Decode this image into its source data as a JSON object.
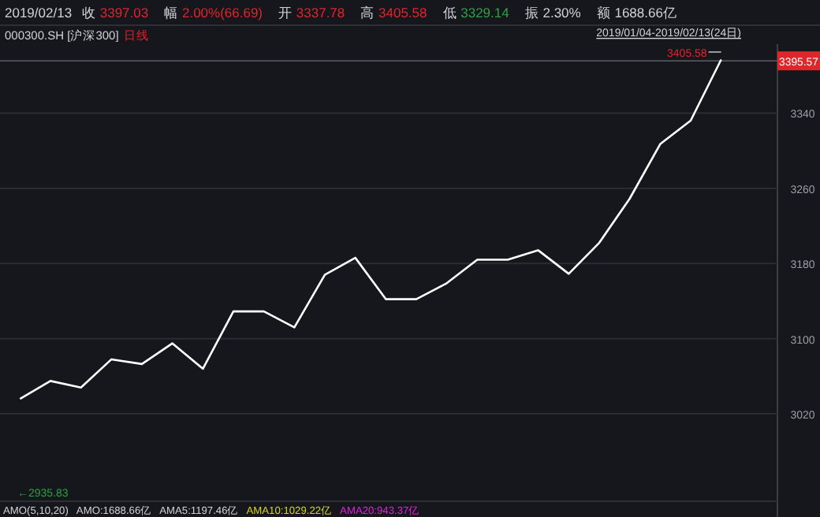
{
  "chart_data": {
    "type": "line",
    "title": "2019/02/13",
    "subtitle": "000300.SH [沪深300]",
    "categories": [
      null,
      null,
      null,
      null,
      null,
      null,
      null,
      null,
      null,
      null,
      null,
      null,
      null,
      null,
      null,
      null,
      null,
      null,
      null,
      null,
      null,
      null,
      null,
      null
    ],
    "values": [
      3036,
      3055,
      3048,
      3078,
      3073,
      3095,
      3068,
      3129,
      3129,
      3112,
      3168,
      3186,
      3142,
      3142,
      3159,
      3184,
      3184,
      3194,
      3169,
      3202,
      3249,
      3307,
      3332,
      3397
    ],
    "color": "#ffffff",
    "ylim": [
      2927,
      3410
    ],
    "yticks": [
      3020,
      3100,
      3180,
      3260,
      3340
    ],
    "grid": "y",
    "ref_lines": [
      {
        "axis": "y",
        "value": 3395.57,
        "label": "3395.57"
      }
    ],
    "annotations": [
      "收 3397.03",
      "幅 2.00%(66.69)",
      "开 3337.78",
      "高 3405.58",
      "低 3329.14",
      "振 2.30%",
      "额 1688.66亿",
      "日线",
      "2019/01/04-2019/02/13(24日)",
      "3405.58",
      "←2935.83",
      "AMO(5,10,20)",
      "AMO:1688.66亿",
      "AMA5:1197.46亿",
      "AMA10:1029.22亿",
      "AMA20:943.37亿"
    ]
  }
}
